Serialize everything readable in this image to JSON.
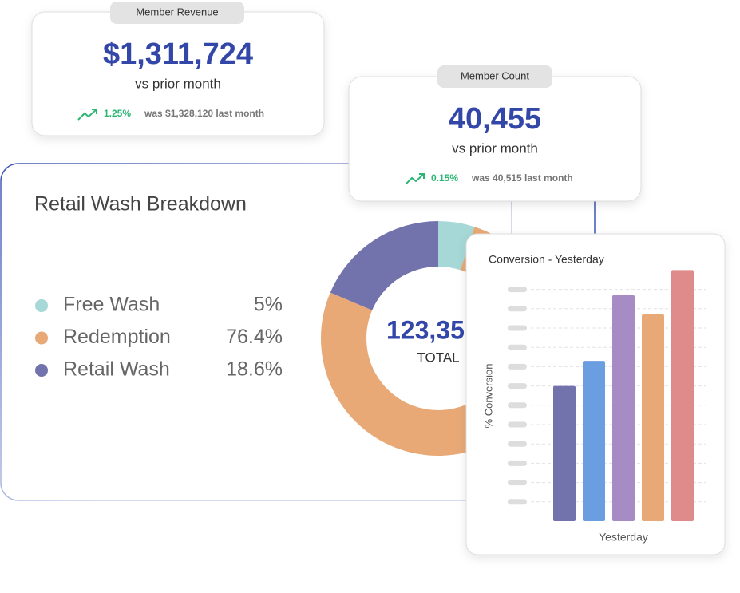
{
  "kpis": [
    {
      "tab": "Member Revenue",
      "value": "$1,311,724",
      "subtitle": "vs prior month",
      "change": "1.25%",
      "note": "was $1,328,120 last month"
    },
    {
      "tab": "Member Count",
      "value": "40,455",
      "subtitle": "vs prior month",
      "change": "0.15%",
      "note": "was 40,515 last month"
    }
  ],
  "chart_data": [
    {
      "type": "donut",
      "title": "Retail Wash Breakdown",
      "center_value": "123,35",
      "center_label": "TOTAL",
      "categories": [
        "Free Wash",
        "Redemption",
        "Retail Wash"
      ],
      "values": [
        5,
        76.4,
        18.6
      ],
      "value_labels": [
        "5%",
        "76.4%",
        "18.6%"
      ],
      "colors": [
        "#a6d8d8",
        "#e8a976",
        "#7272ad"
      ]
    },
    {
      "type": "bar",
      "title": "Conversion - Yesterday",
      "ylabel": "% Conversion",
      "xlabel": "Yesterday",
      "categories": [
        null,
        null,
        null,
        null,
        null
      ],
      "values": [
        7,
        8.3,
        11.7,
        10.7,
        13
      ],
      "colors": [
        "#7272ad",
        "#6a9ee0",
        "#a78bc4",
        "#e8a976",
        "#e08b8b"
      ],
      "ylim": [
        0,
        13
      ],
      "yticks": [
        1,
        2,
        3,
        4,
        5,
        6,
        7,
        8,
        9,
        10,
        11,
        12
      ],
      "grid": true
    }
  ]
}
